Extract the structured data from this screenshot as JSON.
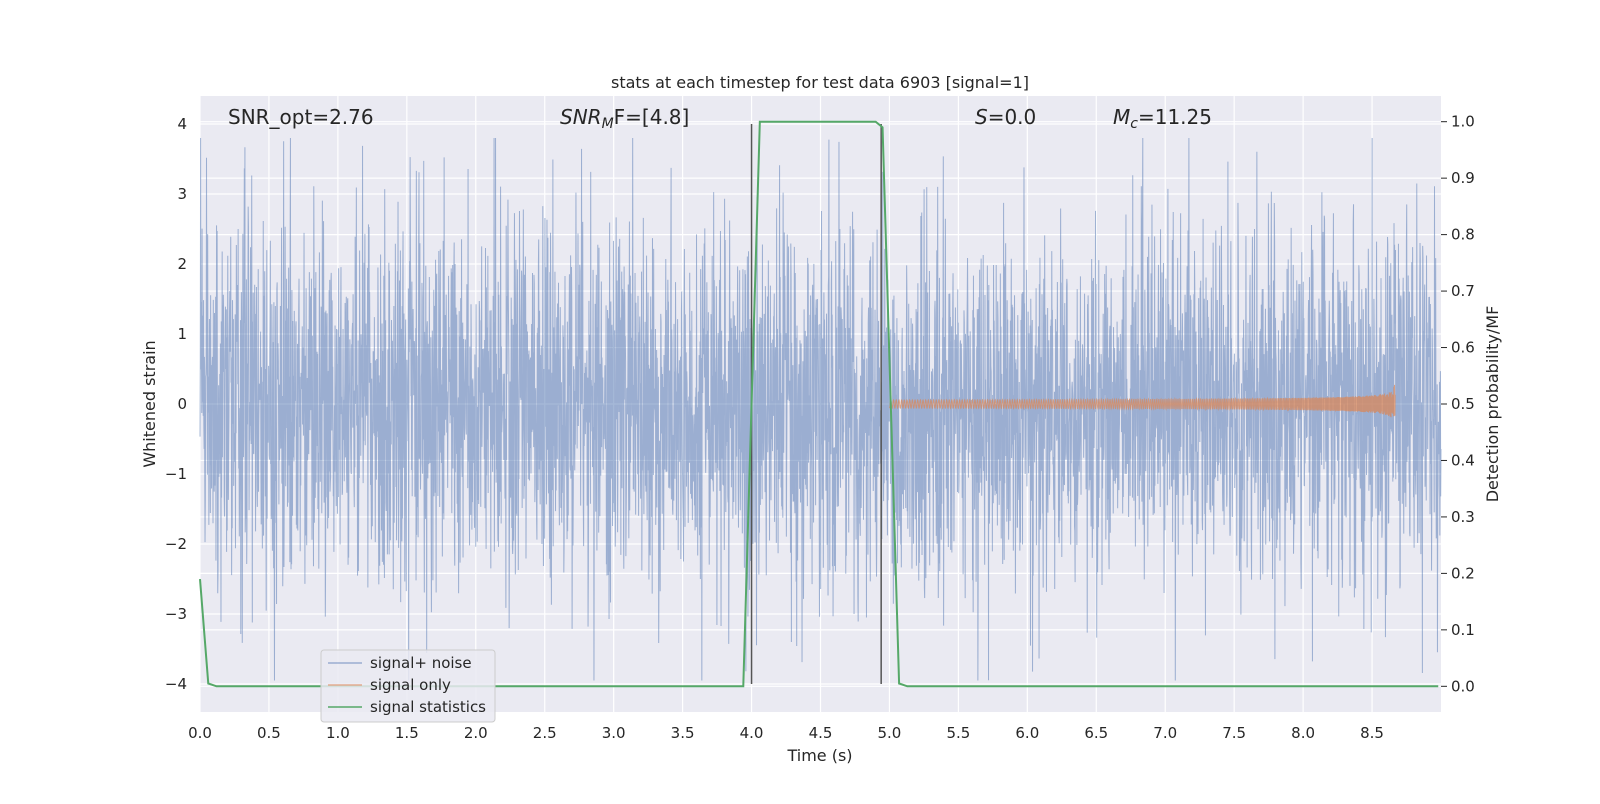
{
  "chart_data": {
    "type": "line",
    "title": "stats at each timestep for test data 6903 [signal=1]",
    "xlabel": "Time (s)",
    "ylabel_left": "Whitened strain",
    "ylabel_right": "Detection probability/MF",
    "xlim": [
      0.0,
      9.0
    ],
    "ylim_left": [
      -4.4,
      4.4
    ],
    "ylim_right": [
      -0.0455,
      1.0455
    ],
    "x_ticks": [
      "0.0",
      "0.5",
      "1.0",
      "1.5",
      "2.0",
      "2.5",
      "3.0",
      "3.5",
      "4.0",
      "4.5",
      "5.0",
      "5.5",
      "6.0",
      "6.5",
      "7.0",
      "7.5",
      "8.0",
      "8.5"
    ],
    "x_tick_values": [
      0.0,
      0.5,
      1.0,
      1.5,
      2.0,
      2.5,
      3.0,
      3.5,
      4.0,
      4.5,
      5.0,
      5.5,
      6.0,
      6.5,
      7.0,
      7.5,
      8.0,
      8.5
    ],
    "y_left_ticks": [
      "4",
      "3",
      "2",
      "1",
      "0",
      "−1",
      "−2",
      "−3",
      "−4"
    ],
    "y_left_tick_values": [
      4,
      3,
      2,
      1,
      0,
      -1,
      -2,
      -3,
      -4
    ],
    "y_right_ticks": [
      "1.0",
      "0.9",
      "0.8",
      "0.7",
      "0.6",
      "0.5",
      "0.4",
      "0.3",
      "0.2",
      "0.1",
      "0.0"
    ],
    "y_right_tick_values": [
      1.0,
      0.9,
      0.8,
      0.7,
      0.6,
      0.5,
      0.4,
      0.3,
      0.2,
      0.1,
      0.0
    ],
    "grid": true,
    "legend_position": "lower-left",
    "annotations": {
      "snr_opt": "SNR_opt=2.76",
      "snr_mf_main": "SNR",
      "snr_mf_sub": "M",
      "snr_mf_rest": "F=[4.8]",
      "s_main": "S",
      "s_rest": "=0.0",
      "mc_main": "M",
      "mc_sub": "c",
      "mc_rest": "=11.25"
    },
    "vertical_lines_x": [
      4.0,
      4.94
    ],
    "series": [
      {
        "name": "signal+ noise",
        "color": "#4c72b0",
        "noise_sigma": 1.0,
        "noise_peak_max": 3.8,
        "noise_peak_min": -3.95
      },
      {
        "name": "signal only",
        "color": "#dd8452",
        "start_x": 5.0,
        "end_x": 8.67,
        "final_amplitude": 0.65
      },
      {
        "name": "signal statistics",
        "color": "#55a868",
        "axis": "right",
        "x": [
          0.0,
          0.06,
          0.12,
          3.94,
          4.0,
          4.06,
          4.9,
          4.95,
          5.07,
          5.13,
          8.98
        ],
        "y": [
          0.19,
          0.005,
          0.0,
          0.0,
          0.5,
          1.0,
          1.0,
          0.99,
          0.005,
          0.0,
          0.0
        ]
      }
    ]
  }
}
